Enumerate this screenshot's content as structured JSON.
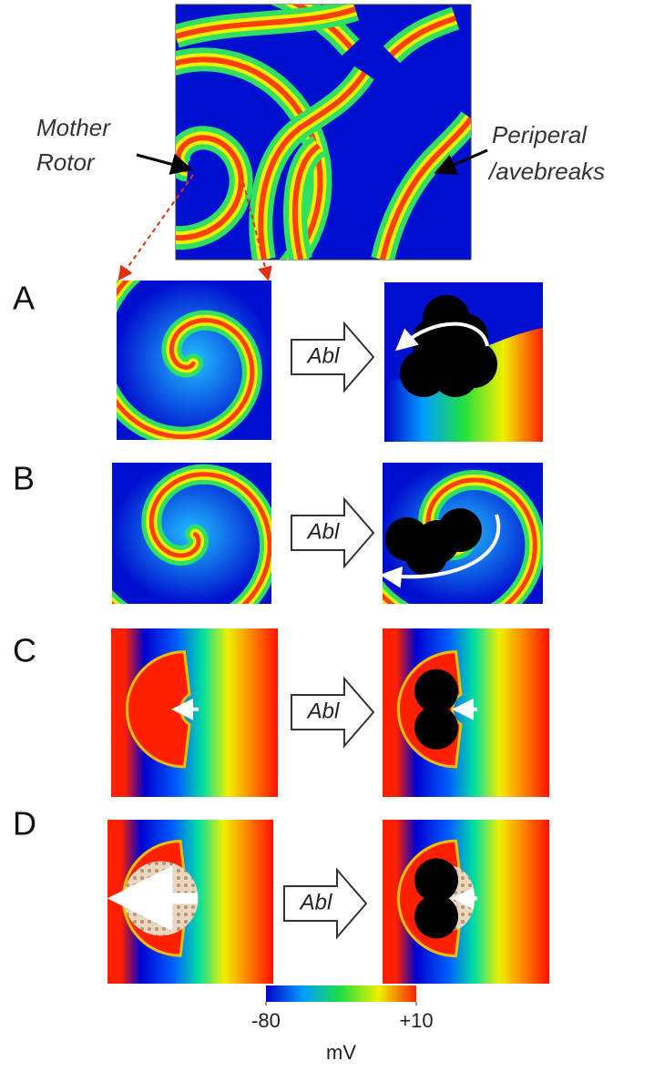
{
  "top_annotations": {
    "left": [
      "Mother",
      "Rotor"
    ],
    "right": [
      "Periperal",
      "/avebreaks"
    ]
  },
  "panels": [
    {
      "label": "A",
      "action": "Abl"
    },
    {
      "label": "B",
      "action": "Abl"
    },
    {
      "label": "C",
      "action": "Abl"
    },
    {
      "label": "D",
      "action": "Abl"
    }
  ],
  "colorbar": {
    "lim": [
      -80,
      10
    ],
    "ticks": [
      -80,
      {
        "value": 10,
        "label": "+10"
      }
    ],
    "unit": "mV"
  }
}
